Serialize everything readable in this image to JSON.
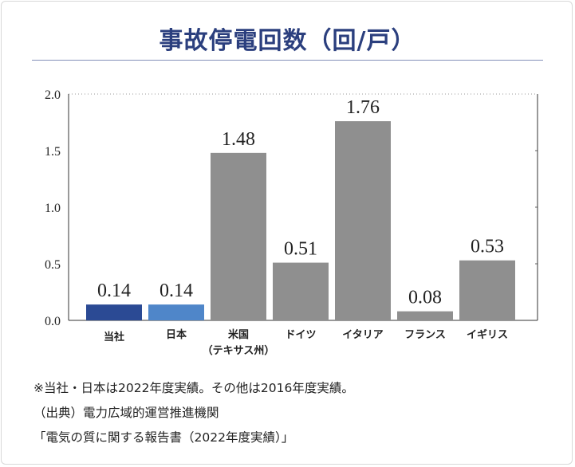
{
  "title": "事故停電回数（回/戸）",
  "colors": {
    "company": "#2b4a94",
    "japan": "#4f86c9",
    "other": "#8f8f8f",
    "title": "#2b3f7e",
    "company_label": "#2b4a94",
    "japan_value": "#4f86c9"
  },
  "chart_data": {
    "type": "bar",
    "title": "事故停電回数（回/戸）",
    "xlabel": "",
    "ylabel": "",
    "ylim": [
      0,
      2.0
    ],
    "yticks": [
      "0.0",
      "0.5",
      "1.0",
      "1.5",
      "2.0"
    ],
    "grid": true,
    "categories": [
      "当社",
      "日本",
      "米国",
      "ドイツ",
      "イタリア",
      "フランス",
      "イギリス"
    ],
    "category_sublabels": [
      "",
      "",
      "（テキサス州）",
      "",
      "",
      "",
      ""
    ],
    "values": [
      0.14,
      0.14,
      1.48,
      0.51,
      1.76,
      0.08,
      0.53
    ],
    "value_labels": [
      "0.14",
      "0.14",
      "1.48",
      "0.51",
      "1.76",
      "0.08",
      "0.53"
    ]
  },
  "notes": [
    "※当社・日本は2022年度実績。その他は2016年度実績。",
    "（出典）電力広域的運営推進機関",
    "「電気の質に関する報告書（2022年度実績）」"
  ]
}
